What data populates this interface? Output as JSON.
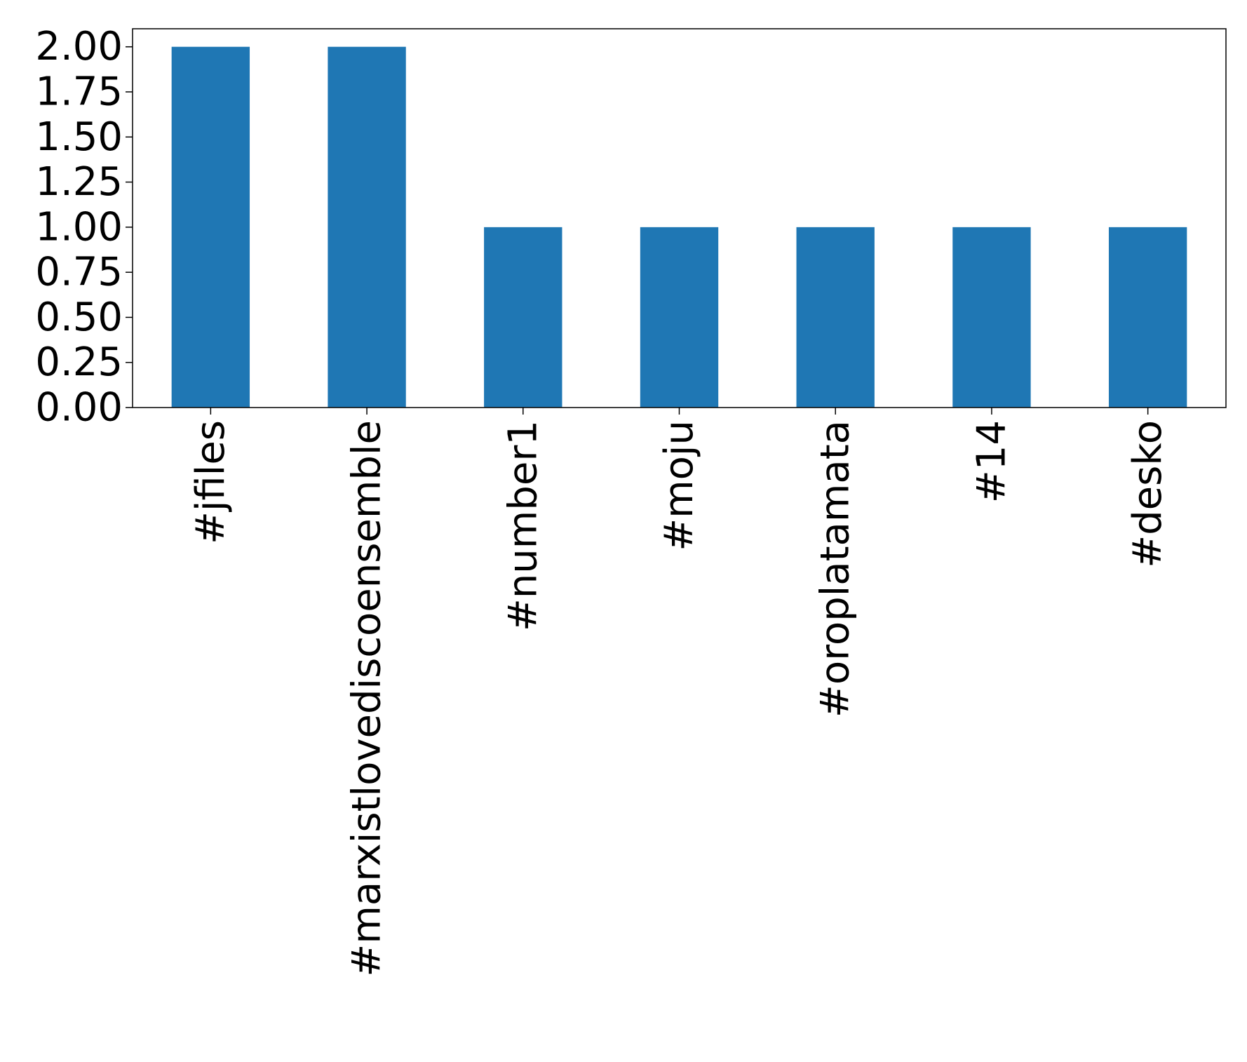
{
  "chart_data": {
    "type": "bar",
    "categories": [
      "#jfiles",
      "#marxistlovediscoensemble",
      "#number1",
      "#moju",
      "#oroplatamata",
      "#14",
      "#desko"
    ],
    "values": [
      2,
      2,
      1,
      1,
      1,
      1,
      1
    ],
    "color": "#1f77b4",
    "ylim": [
      0,
      2.1
    ],
    "yticks": [
      {
        "value": 0,
        "label": "0.00"
      },
      {
        "value": 0.25,
        "label": "0.25"
      },
      {
        "value": 0.5,
        "label": "0.50"
      },
      {
        "value": 0.75,
        "label": "0.75"
      },
      {
        "value": 1,
        "label": "1.00"
      },
      {
        "value": 1.25,
        "label": "1.25"
      },
      {
        "value": 1.5,
        "label": "1.50"
      },
      {
        "value": 1.75,
        "label": "1.75"
      },
      {
        "value": 2,
        "label": "2.00"
      }
    ],
    "grid": false
  }
}
